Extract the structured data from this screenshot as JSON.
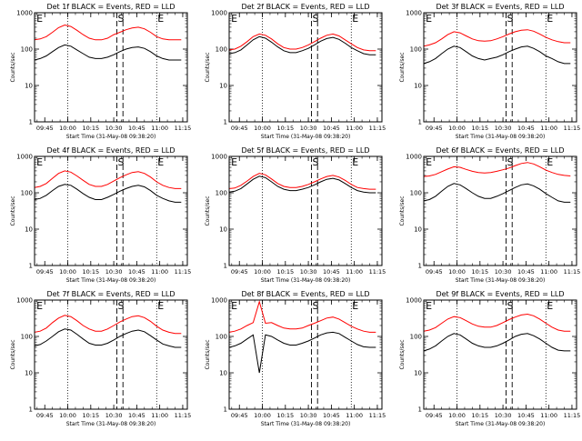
{
  "figure": {
    "ylabel": "Counts/sec",
    "xlabel": "Start Time (31-May-08 09:38:20)",
    "series_colors": {
      "events": "#000000",
      "lld": "#ff0000"
    },
    "xtick_labels": [
      "09:45",
      "10:00",
      "10:15",
      "10:30",
      "10:45",
      "11:00",
      "11:15"
    ],
    "ytick_labels": [
      "1",
      "10",
      "100",
      "1000"
    ]
  },
  "chart_data": [
    {
      "type": "line",
      "title": "Det 1f BLACK = Events, RED = LLD",
      "yscale": "log",
      "x": [
        "09:38:20",
        "09:42",
        "09:46",
        "09:50",
        "09:54",
        "09:58",
        "10:02",
        "10:06",
        "10:10",
        "10:14",
        "10:18",
        "10:22",
        "10:26",
        "10:30",
        "10:34",
        "10:38",
        "10:42",
        "10:46",
        "10:50",
        "10:54",
        "10:58",
        "11:02",
        "11:06",
        "11:10",
        "11:14"
      ],
      "series": [
        {
          "values": [
            180,
            190,
            220,
            290,
            390,
            460,
            420,
            330,
            250,
            200,
            180,
            180,
            200,
            250,
            290,
            340,
            380,
            400,
            360,
            290,
            220,
            190,
            180,
            180,
            180
          ]
        },
        {
          "values": [
            50,
            55,
            65,
            85,
            110,
            130,
            120,
            95,
            75,
            60,
            55,
            55,
            60,
            70,
            85,
            100,
            110,
            115,
            105,
            85,
            65,
            55,
            50,
            50,
            50
          ]
        }
      ],
      "markers": [
        {
          "label": "E",
          "x": "09:39"
        },
        {
          "label": "S",
          "x": "10:32"
        },
        {
          "label": "E",
          "x": "10:58"
        }
      ],
      "ylim": [
        1,
        1000
      ]
    },
    {
      "type": "line",
      "title": "Det 2f BLACK = Events, RED = LLD",
      "yscale": "log",
      "x": [
        "09:38:20",
        "09:42",
        "09:46",
        "09:50",
        "09:54",
        "09:58",
        "10:02",
        "10:06",
        "10:10",
        "10:14",
        "10:18",
        "10:22",
        "10:26",
        "10:30",
        "10:34",
        "10:38",
        "10:42",
        "10:46",
        "10:50",
        "10:54",
        "10:58",
        "11:02",
        "11:06",
        "11:10",
        "11:14"
      ],
      "series": [
        {
          "values": [
            95,
            100,
            120,
            160,
            220,
            260,
            240,
            190,
            140,
            110,
            100,
            100,
            110,
            130,
            160,
            200,
            240,
            260,
            230,
            180,
            140,
            110,
            95,
            90,
            90
          ]
        },
        {
          "values": [
            75,
            80,
            95,
            130,
            180,
            220,
            200,
            155,
            115,
            90,
            80,
            80,
            90,
            105,
            130,
            165,
            195,
            210,
            185,
            145,
            110,
            90,
            75,
            70,
            70
          ]
        }
      ],
      "markers": [
        {
          "label": "E",
          "x": "09:39"
        },
        {
          "label": "S",
          "x": "10:32"
        },
        {
          "label": "E",
          "x": "10:58"
        }
      ],
      "ylim": [
        1,
        1000
      ]
    },
    {
      "type": "line",
      "title": "Det 3f BLACK = Events, RED = LLD",
      "yscale": "log",
      "x": [
        "09:38:20",
        "09:42",
        "09:46",
        "09:50",
        "09:54",
        "09:58",
        "10:02",
        "10:06",
        "10:10",
        "10:14",
        "10:18",
        "10:22",
        "10:26",
        "10:30",
        "10:34",
        "10:38",
        "10:42",
        "10:46",
        "10:50",
        "10:54",
        "10:58",
        "11:02",
        "11:06",
        "11:10",
        "11:14"
      ],
      "series": [
        {
          "values": [
            120,
            130,
            150,
            190,
            250,
            300,
            280,
            230,
            190,
            170,
            165,
            170,
            190,
            220,
            260,
            300,
            330,
            340,
            310,
            260,
            210,
            180,
            160,
            150,
            150
          ]
        },
        {
          "values": [
            40,
            45,
            55,
            75,
            100,
            120,
            110,
            85,
            65,
            55,
            50,
            55,
            60,
            70,
            85,
            100,
            115,
            120,
            105,
            85,
            65,
            55,
            45,
            40,
            40
          ]
        }
      ],
      "markers": [
        {
          "label": "E",
          "x": "09:39"
        },
        {
          "label": "S",
          "x": "10:32"
        },
        {
          "label": "E",
          "x": "10:58"
        }
      ],
      "ylim": [
        1,
        1000
      ]
    },
    {
      "type": "line",
      "title": "Det 4f BLACK = Events, RED = LLD",
      "yscale": "log",
      "x": [
        "09:38:20",
        "09:42",
        "09:46",
        "09:50",
        "09:54",
        "09:58",
        "10:02",
        "10:06",
        "10:10",
        "10:14",
        "10:18",
        "10:22",
        "10:26",
        "10:30",
        "10:34",
        "10:38",
        "10:42",
        "10:46",
        "10:50",
        "10:54",
        "10:58",
        "11:02",
        "11:06",
        "11:10",
        "11:14"
      ],
      "series": [
        {
          "values": [
            140,
            150,
            180,
            250,
            340,
            400,
            370,
            290,
            220,
            170,
            150,
            150,
            170,
            210,
            260,
            310,
            360,
            380,
            340,
            270,
            200,
            160,
            140,
            130,
            130
          ]
        },
        {
          "values": [
            65,
            70,
            85,
            115,
            150,
            170,
            160,
            125,
            95,
            75,
            65,
            65,
            75,
            90,
            110,
            130,
            150,
            160,
            145,
            115,
            85,
            70,
            60,
            55,
            55
          ]
        }
      ],
      "markers": [
        {
          "label": "E",
          "x": "09:39"
        },
        {
          "label": "S",
          "x": "10:32"
        },
        {
          "label": "E",
          "x": "10:58"
        }
      ],
      "ylim": [
        1,
        1000
      ]
    },
    {
      "type": "line",
      "title": "Det 5f BLACK = Events, RED = LLD",
      "yscale": "log",
      "x": [
        "09:38:20",
        "09:42",
        "09:46",
        "09:50",
        "09:54",
        "09:58",
        "10:02",
        "10:06",
        "10:10",
        "10:14",
        "10:18",
        "10:22",
        "10:26",
        "10:30",
        "10:34",
        "10:38",
        "10:42",
        "10:46",
        "10:50",
        "10:54",
        "10:58",
        "11:02",
        "11:06",
        "11:10",
        "11:14"
      ],
      "series": [
        {
          "values": [
            130,
            135,
            160,
            210,
            280,
            340,
            310,
            240,
            180,
            150,
            140,
            140,
            150,
            170,
            200,
            240,
            280,
            300,
            270,
            220,
            170,
            140,
            130,
            125,
            125
          ]
        },
        {
          "values": [
            105,
            110,
            130,
            175,
            235,
            285,
            260,
            200,
            150,
            125,
            115,
            115,
            125,
            140,
            165,
            200,
            235,
            250,
            225,
            180,
            140,
            115,
            105,
            100,
            100
          ]
        }
      ],
      "markers": [
        {
          "label": "E",
          "x": "09:39"
        },
        {
          "label": "S",
          "x": "10:32"
        },
        {
          "label": "E",
          "x": "10:58"
        }
      ],
      "ylim": [
        1,
        1000
      ]
    },
    {
      "type": "line",
      "title": "Det 6f BLACK = Events, RED = LLD",
      "yscale": "log",
      "x": [
        "09:38:20",
        "09:42",
        "09:46",
        "09:50",
        "09:54",
        "09:58",
        "10:02",
        "10:06",
        "10:10",
        "10:14",
        "10:18",
        "10:22",
        "10:26",
        "10:30",
        "10:34",
        "10:38",
        "10:42",
        "10:46",
        "10:50",
        "10:54",
        "10:58",
        "11:02",
        "11:06",
        "11:10",
        "11:14"
      ],
      "series": [
        {
          "values": [
            280,
            290,
            320,
            380,
            450,
            520,
            500,
            440,
            390,
            360,
            350,
            360,
            390,
            430,
            480,
            560,
            640,
            680,
            620,
            520,
            420,
            360,
            320,
            300,
            290
          ]
        },
        {
          "values": [
            60,
            65,
            80,
            110,
            150,
            180,
            165,
            130,
            100,
            80,
            70,
            70,
            80,
            95,
            115,
            140,
            165,
            175,
            155,
            125,
            95,
            75,
            60,
            55,
            55
          ]
        }
      ],
      "markers": [
        {
          "label": "E",
          "x": "09:39"
        },
        {
          "label": "S",
          "x": "10:32"
        },
        {
          "label": "E",
          "x": "10:58"
        }
      ],
      "ylim": [
        1,
        1000
      ]
    },
    {
      "type": "line",
      "title": "Det 7f BLACK = Events, RED = LLD",
      "yscale": "log",
      "x": [
        "09:38:20",
        "09:42",
        "09:46",
        "09:50",
        "09:54",
        "09:58",
        "10:02",
        "10:06",
        "10:10",
        "10:14",
        "10:18",
        "10:22",
        "10:26",
        "10:30",
        "10:34",
        "10:38",
        "10:42",
        "10:46",
        "10:50",
        "10:54",
        "10:58",
        "11:02",
        "11:06",
        "11:10",
        "11:14"
      ],
      "series": [
        {
          "values": [
            130,
            140,
            170,
            240,
            320,
            380,
            350,
            270,
            200,
            160,
            140,
            140,
            160,
            200,
            250,
            300,
            350,
            370,
            330,
            260,
            190,
            150,
            130,
            120,
            120
          ]
        },
        {
          "values": [
            55,
            60,
            75,
            100,
            135,
            160,
            150,
            115,
            85,
            65,
            58,
            58,
            65,
            80,
            100,
            120,
            140,
            150,
            135,
            105,
            80,
            62,
            55,
            50,
            50
          ]
        }
      ],
      "markers": [
        {
          "label": "E",
          "x": "09:39"
        },
        {
          "label": "S",
          "x": "10:32"
        },
        {
          "label": "E",
          "x": "10:58"
        }
      ],
      "ylim": [
        1,
        1000
      ]
    },
    {
      "type": "line",
      "title": "Det 8f BLACK = Events, RED = LLD",
      "yscale": "log",
      "x": [
        "09:38:20",
        "09:42",
        "09:46",
        "09:50",
        "09:54",
        "09:58",
        "10:02",
        "10:06",
        "10:10",
        "10:14",
        "10:18",
        "10:22",
        "10:26",
        "10:30",
        "10:34",
        "10:38",
        "10:42",
        "10:46",
        "10:50",
        "10:54",
        "10:58",
        "11:02",
        "11:06",
        "11:10",
        "11:14"
      ],
      "series": [
        {
          "values": [
            130,
            140,
            160,
            200,
            240,
            900,
            230,
            240,
            200,
            170,
            160,
            160,
            170,
            200,
            230,
            270,
            320,
            340,
            300,
            240,
            190,
            160,
            140,
            130,
            130
          ]
        },
        {
          "values": [
            50,
            55,
            65,
            85,
            110,
            10,
            110,
            100,
            80,
            65,
            58,
            58,
            65,
            75,
            90,
            110,
            125,
            130,
            120,
            95,
            75,
            60,
            52,
            50,
            50
          ]
        }
      ],
      "markers": [
        {
          "label": "E",
          "x": "09:39"
        },
        {
          "label": "S",
          "x": "10:32"
        },
        {
          "label": "E",
          "x": "10:58"
        }
      ],
      "ylim": [
        1,
        1000
      ]
    },
    {
      "type": "line",
      "title": "Det 9f BLACK = Events, RED = LLD",
      "yscale": "log",
      "x": [
        "09:38:20",
        "09:42",
        "09:46",
        "09:50",
        "09:54",
        "09:58",
        "10:02",
        "10:06",
        "10:10",
        "10:14",
        "10:18",
        "10:22",
        "10:26",
        "10:30",
        "10:34",
        "10:38",
        "10:42",
        "10:46",
        "10:50",
        "10:54",
        "10:58",
        "11:02",
        "11:06",
        "11:10",
        "11:14"
      ],
      "series": [
        {
          "values": [
            140,
            150,
            175,
            230,
            300,
            350,
            330,
            270,
            220,
            190,
            180,
            180,
            200,
            240,
            290,
            340,
            390,
            410,
            370,
            300,
            230,
            180,
            150,
            140,
            140
          ]
        },
        {
          "values": [
            40,
            45,
            55,
            75,
            100,
            120,
            110,
            85,
            65,
            55,
            50,
            50,
            55,
            65,
            80,
            100,
            115,
            120,
            105,
            85,
            65,
            50,
            42,
            40,
            40
          ]
        }
      ],
      "markers": [
        {
          "label": "E",
          "x": "09:39"
        },
        {
          "label": "S",
          "x": "10:32"
        },
        {
          "label": "E",
          "x": "10:58"
        }
      ],
      "ylim": [
        1,
        1000
      ]
    }
  ]
}
